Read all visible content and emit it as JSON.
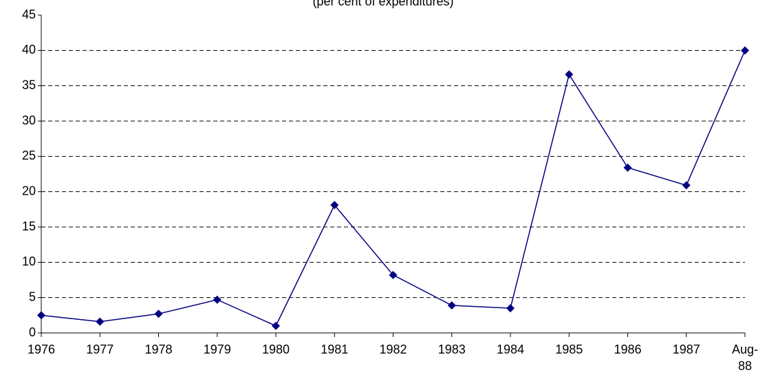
{
  "chart_data": {
    "type": "line",
    "subtitle": "(per cent of expenditures)",
    "categories": [
      "1976",
      "1977",
      "1978",
      "1979",
      "1980",
      "1981",
      "1982",
      "1983",
      "1984",
      "1985",
      "1986",
      "1987",
      "Aug-88"
    ],
    "series": [
      {
        "color": "#000080",
        "values": [
          2.5,
          1.6,
          2.7,
          4.7,
          1.0,
          18.1,
          8.2,
          3.9,
          3.5,
          36.6,
          23.4,
          20.9,
          40.0
        ]
      }
    ],
    "ylim": [
      0,
      45
    ],
    "yticks": [
      0,
      5,
      10,
      15,
      20,
      25,
      30,
      35,
      40,
      45
    ],
    "grid": true
  }
}
